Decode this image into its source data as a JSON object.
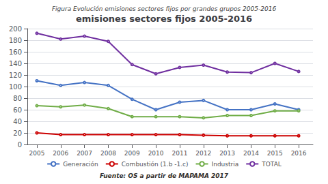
{
  "chart_data": {
    "type": "line",
    "title": "emisiones sectores fijos 2005-2016",
    "subtitle": "Figura Evolución emisiones sectores fijos por grandes grupos 2005-2016",
    "annotations": [
      "Fuente: OS a partir de MAPAMA 2017"
    ],
    "x": [
      2005,
      2006,
      2007,
      2008,
      2009,
      2010,
      2011,
      2012,
      2013,
      2014,
      2015,
      2016
    ],
    "xlim": [
      2004.6,
      2016.6
    ],
    "xticks": [
      2005,
      2006,
      2007,
      2008,
      2009,
      2010,
      2011,
      2012,
      2013,
      2014,
      2015,
      2016
    ],
    "series": [
      {
        "name": "Generación",
        "color": "#4472C4",
        "values": [
          110,
          102,
          107,
          102,
          78,
          60,
          73,
          76,
          60,
          60,
          70,
          60
        ]
      },
      {
        "name": "Combustión (1.b -1.c)",
        "color": "#CC0000",
        "values": [
          20,
          17,
          17,
          17,
          17,
          17,
          17,
          16,
          15,
          15,
          15,
          15
        ]
      },
      {
        "name": "Industria",
        "color": "#70AD47",
        "values": [
          67,
          65,
          68,
          62,
          48,
          48,
          48,
          46,
          50,
          50,
          58,
          58
        ]
      },
      {
        "name": "TOTAL",
        "color": "#7030A0",
        "values": [
          192,
          182,
          187,
          178,
          138,
          122,
          133,
          137,
          125,
          124,
          140,
          126
        ]
      }
    ],
    "ylim": [
      0,
      200
    ],
    "yticks": [
      0,
      20,
      40,
      60,
      80,
      100,
      120,
      140,
      160,
      180,
      200
    ],
    "grid": true,
    "legend": "bottom"
  }
}
